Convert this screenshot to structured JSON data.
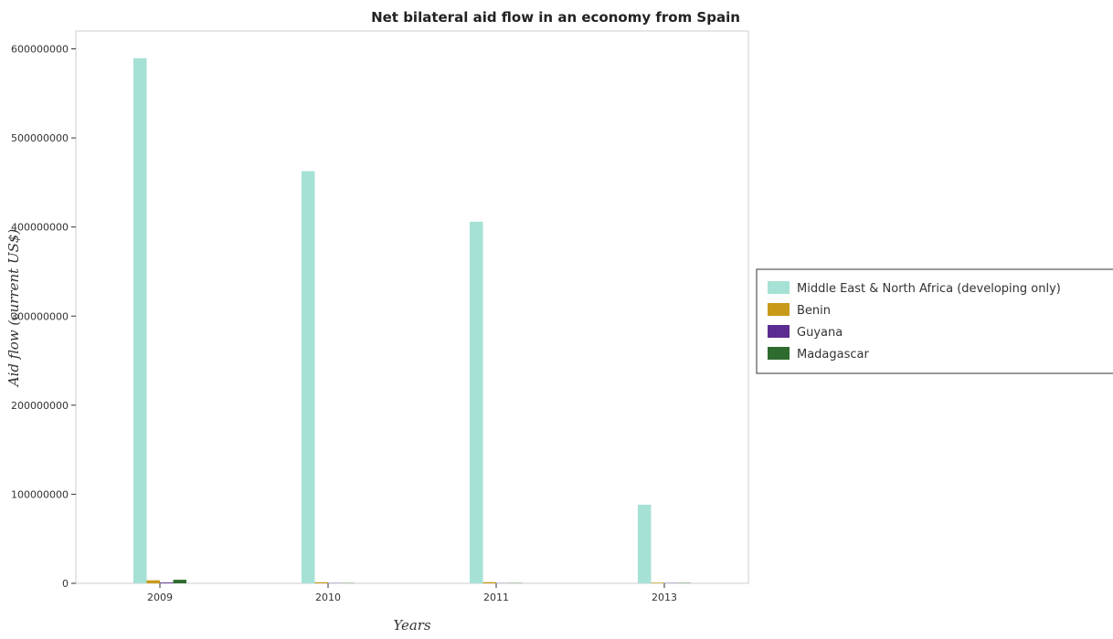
{
  "chart_data": {
    "type": "bar",
    "title": "Net bilateral aid flow in an economy from Spain",
    "xlabel": "Years",
    "ylabel": "Aid flow (current US$)",
    "categories": [
      "2009",
      "2010",
      "2011",
      "2013"
    ],
    "series": [
      {
        "name": "Middle East & North Africa (developing only)",
        "color": "#a6e1d5",
        "values": [
          589500000,
          462700000,
          406000000,
          88300000
        ]
      },
      {
        "name": "Benin",
        "color": "#c99a1a",
        "values": [
          3400000,
          1200000,
          1300000,
          700000
        ]
      },
      {
        "name": "Guyana",
        "color": "#5c2d91",
        "values": [
          900000,
          300000,
          200000,
          300000
        ]
      },
      {
        "name": "Madagascar",
        "color": "#2e6b2e",
        "values": [
          4000000,
          300000,
          300000,
          400000
        ]
      }
    ],
    "ylim": [
      0,
      620000000
    ],
    "yticks": [
      0,
      100000000,
      200000000,
      300000000,
      400000000,
      500000000,
      600000000
    ],
    "ytick_labels": [
      "0",
      "100000000",
      "200000000",
      "300000000",
      "400000000",
      "500000000",
      "600000000"
    ],
    "grid": false,
    "legend_position": "right"
  }
}
